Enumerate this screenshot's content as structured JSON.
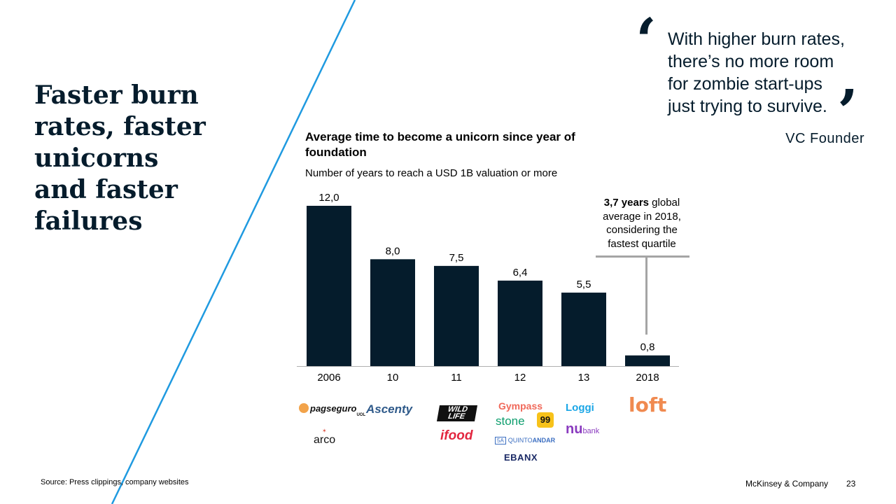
{
  "headline": {
    "lines": [
      "Faster burn",
      "rates, faster",
      "unicorns",
      "and faster",
      "failures"
    ]
  },
  "quote": {
    "lines": [
      "With higher burn rates,",
      "there’s no more room",
      "for zombie start-ups",
      "just trying to survive."
    ],
    "author": "VC Founder"
  },
  "chart_data": {
    "type": "bar",
    "title": "Average time to become a unicorn since year of foundation",
    "subtitle": "Number of years to reach a USD 1B valuation or more",
    "categories": [
      "2006",
      "10",
      "11",
      "12",
      "13",
      "2018"
    ],
    "values": [
      12.0,
      8.0,
      7.5,
      6.4,
      5.5,
      0.8
    ],
    "value_labels": [
      "12,0",
      "8,0",
      "7,5",
      "6,4",
      "5,5",
      "0,8"
    ],
    "ylim": [
      0,
      12
    ],
    "bar_color": "#051c2c",
    "axis_color": "#b0b0b0",
    "grid": false,
    "annotation": {
      "bold": "3,7 years",
      "rest": " global average in 2018, considering the fastest quartile",
      "target_category": "2018"
    }
  },
  "logos": {
    "pagseguro": "pagseguro",
    "pagseguro_sub": "UOL",
    "arco": "arco",
    "ascenty": "Ascenty",
    "wildlife_1": "WILD",
    "wildlife_2": "LIFE",
    "ifood": "ifood",
    "gympass": "Gympass",
    "stone": "stone",
    "n99": "99",
    "quinto_box": "5A",
    "quinto_a": "QUINTO",
    "quinto_b": "ANDAR",
    "ebanx": "EBANX",
    "loggi": "Loggi",
    "nubank_nu": "nu",
    "nubank_bank": "bank",
    "loft": "loft"
  },
  "footer": {
    "source": "Source: Press clippings, company websites",
    "brand": "McKinsey & Company",
    "page": "23"
  },
  "colors": {
    "navy": "#051c2c",
    "accent_line": "#1f9ae0",
    "annotation_line": "#a5a5a5"
  }
}
